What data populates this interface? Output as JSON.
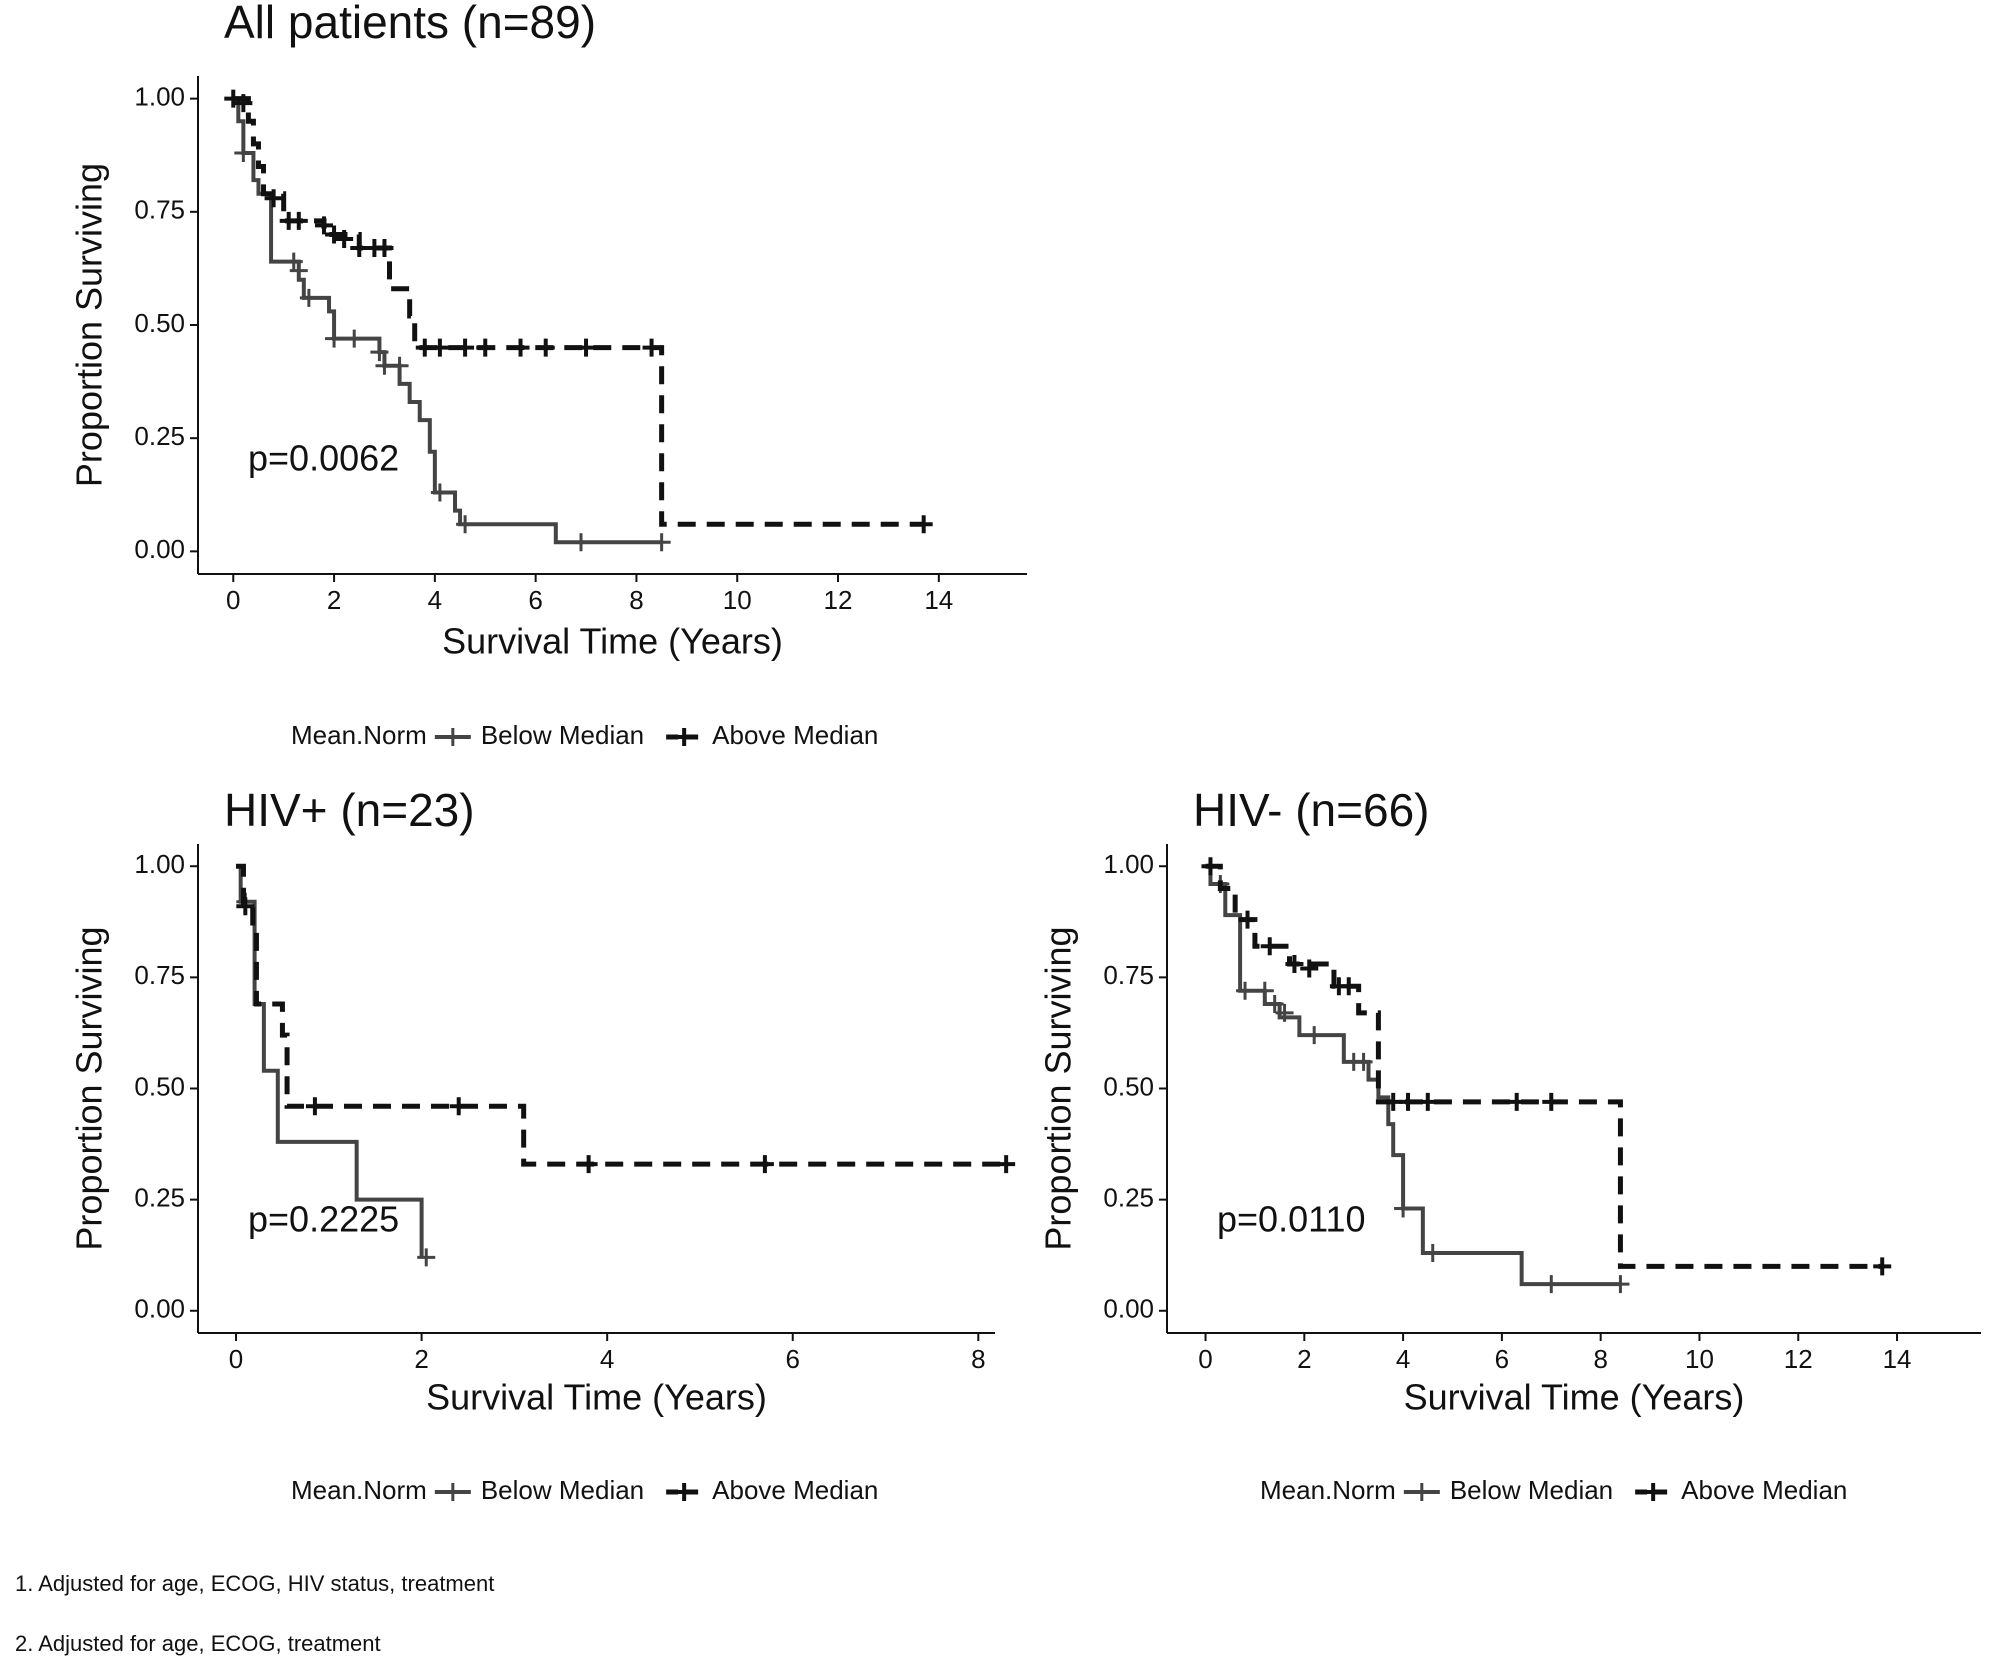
{
  "chart_data": [
    {
      "type": "km",
      "title": "All patients (n=89)",
      "xlabel": "Survival Time (Years)",
      "ylabel": "Proportion Surviving",
      "annotation": "p=0.0062",
      "legend_title": "Mean.Norm",
      "xlim": [
        -0.7,
        15.75
      ],
      "ylim": [
        -0.05,
        1.05
      ],
      "xticks": [
        0,
        2,
        4,
        6,
        8,
        10,
        12,
        14
      ],
      "yticks": [
        {
          "value": 0,
          "label": "0.00"
        },
        {
          "value": 0.25,
          "label": "0.25"
        },
        {
          "value": 0.5,
          "label": "0.50"
        },
        {
          "value": 0.75,
          "label": "0.75"
        },
        {
          "value": 1,
          "label": "1.00"
        }
      ],
      "series": [
        {
          "name": "Below Median",
          "color": "#444444",
          "dash": false,
          "x": [
            0,
            0.1,
            0.2,
            0.4,
            0.5,
            0.75,
            1.3,
            1.4,
            1.9,
            2.0,
            2.9,
            3.0,
            3.3,
            3.5,
            3.7,
            3.9,
            4.0,
            4.4,
            4.5,
            6.4,
            8.5
          ],
          "values": [
            1,
            0.95,
            0.88,
            0.82,
            0.79,
            0.64,
            0.6,
            0.56,
            0.53,
            0.47,
            0.44,
            0.41,
            0.37,
            0.33,
            0.29,
            0.22,
            0.13,
            0.09,
            0.06,
            0.02,
            0.02
          ],
          "censor_x": [
            0.2,
            1.2,
            1.3,
            1.5,
            2.0,
            2.4,
            2.9,
            3.0,
            3.3,
            4.1,
            4.6,
            6.9,
            8.5
          ],
          "censor_values": [
            0.88,
            0.64,
            0.62,
            0.56,
            0.47,
            0.47,
            0.44,
            0.41,
            0.41,
            0.13,
            0.06,
            0.02,
            0.02
          ]
        },
        {
          "name": "Above Median",
          "color": "#111111",
          "dash": true,
          "x": [
            0,
            0.3,
            0.4,
            0.5,
            0.6,
            1.0,
            1.8,
            2.5,
            3.1,
            3.5,
            3.6,
            8.5,
            13.7
          ],
          "values": [
            1,
            0.95,
            0.9,
            0.85,
            0.79,
            0.73,
            0.7,
            0.67,
            0.58,
            0.52,
            0.45,
            0.06,
            0.06
          ],
          "censor_x": [
            0.0,
            0.2,
            0.8,
            1.1,
            1.3,
            1.8,
            2.0,
            2.2,
            2.5,
            2.8,
            3.0,
            3.8,
            4.1,
            4.6,
            5.0,
            5.7,
            6.2,
            7.0,
            8.3,
            13.7
          ],
          "censor_values": [
            1,
            0.99,
            0.78,
            0.73,
            0.73,
            0.72,
            0.7,
            0.69,
            0.67,
            0.67,
            0.67,
            0.45,
            0.45,
            0.45,
            0.45,
            0.45,
            0.45,
            0.45,
            0.45,
            0.06
          ]
        }
      ]
    },
    {
      "type": "km",
      "title": "HIV+ (n=23)",
      "xlabel": "Survival Time (Years)",
      "ylabel": "Proportion Surviving",
      "annotation": "p=0.2225",
      "legend_title": "Mean.Norm",
      "xlim": [
        -0.41,
        8.18
      ],
      "ylim": [
        -0.05,
        1.05
      ],
      "xticks": [
        0,
        2,
        4,
        6,
        8
      ],
      "yticks": [
        {
          "value": 0,
          "label": "0.00"
        },
        {
          "value": 0.25,
          "label": "0.25"
        },
        {
          "value": 0.5,
          "label": "0.50"
        },
        {
          "value": 0.75,
          "label": "0.75"
        },
        {
          "value": 1,
          "label": "1.00"
        }
      ],
      "series": [
        {
          "name": "Below Median",
          "color": "#444444",
          "dash": false,
          "x": [
            0,
            0.05,
            0.2,
            0.3,
            0.45,
            1.3,
            2.0
          ],
          "values": [
            1,
            0.92,
            0.69,
            0.54,
            0.38,
            0.25,
            0.12
          ],
          "censor_x": [
            0.1,
            2.05
          ],
          "censor_values": [
            0.92,
            0.12
          ]
        },
        {
          "name": "Above Median",
          "color": "#111111",
          "dash": true,
          "x": [
            0,
            0.08,
            0.18,
            0.22,
            0.5,
            0.55,
            3.1,
            8.3
          ],
          "values": [
            1,
            0.91,
            0.86,
            0.69,
            0.62,
            0.46,
            0.33,
            0.33
          ],
          "censor_x": [
            0.1,
            0.85,
            2.4,
            3.8,
            5.7,
            8.3
          ],
          "censor_values": [
            0.91,
            0.46,
            0.46,
            0.33,
            0.33,
            0.33
          ]
        }
      ]
    },
    {
      "type": "km",
      "title": "HIV- (n=66)",
      "xlabel": "Survival Time (Years)",
      "ylabel": "Proportion Surviving",
      "annotation": "p=0.0110",
      "legend_title": "Mean.Norm",
      "xlim": [
        -0.78,
        15.7
      ],
      "ylim": [
        -0.05,
        1.05
      ],
      "xticks": [
        0,
        2,
        4,
        6,
        8,
        10,
        12,
        14
      ],
      "yticks": [
        {
          "value": 0,
          "label": "0.00"
        },
        {
          "value": 0.25,
          "label": "0.25"
        },
        {
          "value": 0.5,
          "label": "0.50"
        },
        {
          "value": 0.75,
          "label": "0.75"
        },
        {
          "value": 1,
          "label": "1.00"
        }
      ],
      "series": [
        {
          "name": "Below Median",
          "color": "#444444",
          "dash": false,
          "x": [
            0,
            0.1,
            0.4,
            0.7,
            1.2,
            1.5,
            1.9,
            2.8,
            3.3,
            3.5,
            3.7,
            3.8,
            4.0,
            4.4,
            6.4,
            8.4
          ],
          "values": [
            1,
            0.96,
            0.89,
            0.72,
            0.69,
            0.66,
            0.62,
            0.56,
            0.52,
            0.48,
            0.42,
            0.35,
            0.23,
            0.13,
            0.06,
            0.06
          ],
          "censor_x": [
            0.3,
            0.8,
            1.2,
            1.4,
            1.6,
            2.2,
            3.0,
            3.2,
            4.0,
            4.6,
            7.0,
            8.4
          ],
          "censor_values": [
            0.96,
            0.72,
            0.72,
            0.69,
            0.67,
            0.62,
            0.56,
            0.56,
            0.23,
            0.13,
            0.06,
            0.06
          ]
        },
        {
          "name": "Above Median",
          "color": "#111111",
          "dash": true,
          "x": [
            0,
            0.3,
            0.6,
            1.0,
            1.7,
            2.6,
            3.1,
            3.5,
            8.4,
            13.7
          ],
          "values": [
            1,
            0.95,
            0.88,
            0.82,
            0.78,
            0.73,
            0.67,
            0.47,
            0.1,
            0.1
          ],
          "censor_x": [
            0.1,
            0.85,
            1.3,
            1.8,
            2.1,
            2.7,
            2.9,
            3.8,
            4.1,
            4.5,
            6.3,
            7.0,
            13.7
          ],
          "censor_values": [
            1,
            0.88,
            0.82,
            0.78,
            0.77,
            0.73,
            0.73,
            0.47,
            0.47,
            0.47,
            0.47,
            0.47,
            0.1
          ]
        }
      ]
    }
  ],
  "notes": [
    "1. Adjusted for age, ECOG, HIV status, treatment",
    "2. Adjusted for age, ECOG, treatment"
  ]
}
